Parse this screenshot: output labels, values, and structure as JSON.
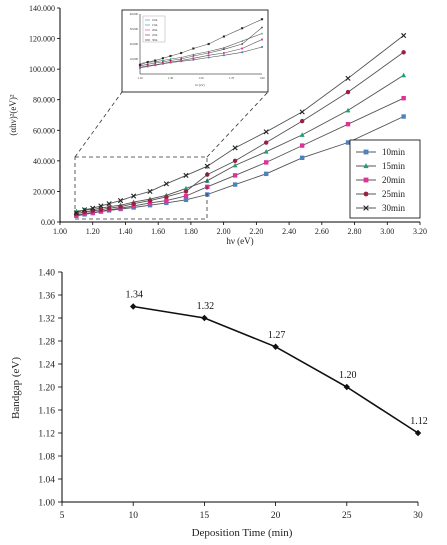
{
  "colors": {
    "axis": "#000000",
    "line": "#555555",
    "bandgap_line": "#111111",
    "series": [
      "#4f81bd",
      "#20a070",
      "#e0309a",
      "#9b2040",
      "#222222"
    ]
  },
  "chart_data": [
    {
      "type": "line",
      "title": "",
      "xlabel": "hν (eV)",
      "ylabel": "(αhν)²(eV)²",
      "xlim": [
        1.0,
        3.2
      ],
      "ylim": [
        0,
        140000
      ],
      "x_ticks": [
        "1.00",
        "1.20",
        "1.40",
        "1.60",
        "1.80",
        "2.00",
        "2.20",
        "2.40",
        "2.60",
        "2.80",
        "3.00",
        "3.20"
      ],
      "y_ticks": [
        "0.00",
        "20.000",
        "40.000",
        "60.000",
        "80.000",
        "100.000",
        "120.000",
        "140.000"
      ],
      "grid": false,
      "legend_position": "right",
      "series": [
        {
          "name": "10min",
          "marker": "square",
          "x": [
            1.1,
            1.15,
            1.2,
            1.25,
            1.3,
            1.37,
            1.45,
            1.55,
            1.65,
            1.77,
            1.9,
            2.07,
            2.26,
            2.48,
            2.76,
            3.1
          ],
          "y": [
            4000,
            5000,
            5800,
            6800,
            7600,
            8500,
            9500,
            11000,
            12500,
            14500,
            18000,
            24500,
            31500,
            42000,
            52000,
            69000
          ]
        },
        {
          "name": "15min",
          "marker": "triangle",
          "x": [
            1.1,
            1.15,
            1.2,
            1.25,
            1.3,
            1.37,
            1.45,
            1.55,
            1.65,
            1.77,
            1.9,
            2.07,
            2.26,
            2.48,
            2.76,
            3.1
          ],
          "y": [
            7000,
            7800,
            8200,
            9000,
            10000,
            11000,
            13000,
            15000,
            17500,
            22000,
            27000,
            37000,
            46000,
            57000,
            73000,
            96000
          ]
        },
        {
          "name": "20min",
          "marker": "square",
          "x": [
            1.1,
            1.15,
            1.2,
            1.25,
            1.3,
            1.37,
            1.45,
            1.55,
            1.65,
            1.77,
            1.9,
            2.07,
            2.26,
            2.48,
            2.76,
            3.1
          ],
          "y": [
            4500,
            5500,
            6200,
            7000,
            8000,
            9000,
            10500,
            12500,
            14000,
            17000,
            23000,
            30500,
            39000,
            50000,
            64000,
            81000
          ]
        },
        {
          "name": "25min",
          "marker": "circle",
          "x": [
            1.1,
            1.15,
            1.2,
            1.25,
            1.3,
            1.37,
            1.45,
            1.55,
            1.65,
            1.77,
            1.9,
            2.07,
            2.26,
            2.48,
            2.76,
            3.1
          ],
          "y": [
            5500,
            6500,
            7300,
            8000,
            9000,
            10000,
            12000,
            14000,
            16500,
            20000,
            31000,
            40000,
            52000,
            66000,
            85000,
            111000
          ]
        },
        {
          "name": "30min",
          "marker": "x",
          "x": [
            1.1,
            1.15,
            1.2,
            1.25,
            1.3,
            1.37,
            1.45,
            1.55,
            1.65,
            1.77,
            1.9,
            2.07,
            2.26,
            2.48,
            2.76,
            3.1
          ],
          "y": [
            6000,
            8000,
            9000,
            10500,
            12000,
            14000,
            17000,
            20000,
            25000,
            30500,
            36500,
            48500,
            59000,
            72000,
            94000,
            122000
          ]
        }
      ],
      "inset": {
        "xlim": [
          1.1,
          1.9
        ],
        "ylim": [
          0,
          40000
        ],
        "x_ticks": [
          "1.10",
          "1.30",
          "1.50",
          "1.70",
          "1.90"
        ],
        "y_ticks": [
          "40,000",
          "30,000",
          "20,000",
          "10,000"
        ],
        "xlabel": "hν (eV)",
        "legend": [
          "10m",
          "15m",
          "20m",
          "25m",
          "30m"
        ]
      }
    },
    {
      "type": "line",
      "title": "",
      "xlabel": "Deposition  Time (min)",
      "ylabel": "Bandgap  (eV)",
      "xlim": [
        5,
        30
      ],
      "ylim": [
        1.0,
        1.4
      ],
      "x_ticks": [
        "5",
        "10",
        "15",
        "20",
        "25",
        "30"
      ],
      "y_ticks": [
        "1.00",
        "1.04",
        "1.08",
        "1.12",
        "1.16",
        "1.20",
        "1.24",
        "1.28",
        "1.32",
        "1.36",
        "1.40"
      ],
      "grid": false,
      "x": [
        10,
        15,
        20,
        25,
        30
      ],
      "y": [
        1.34,
        1.32,
        1.27,
        1.2,
        1.12
      ],
      "labels": [
        "1.34",
        "1.32",
        "1.27",
        "1.20",
        "1.12"
      ]
    }
  ]
}
